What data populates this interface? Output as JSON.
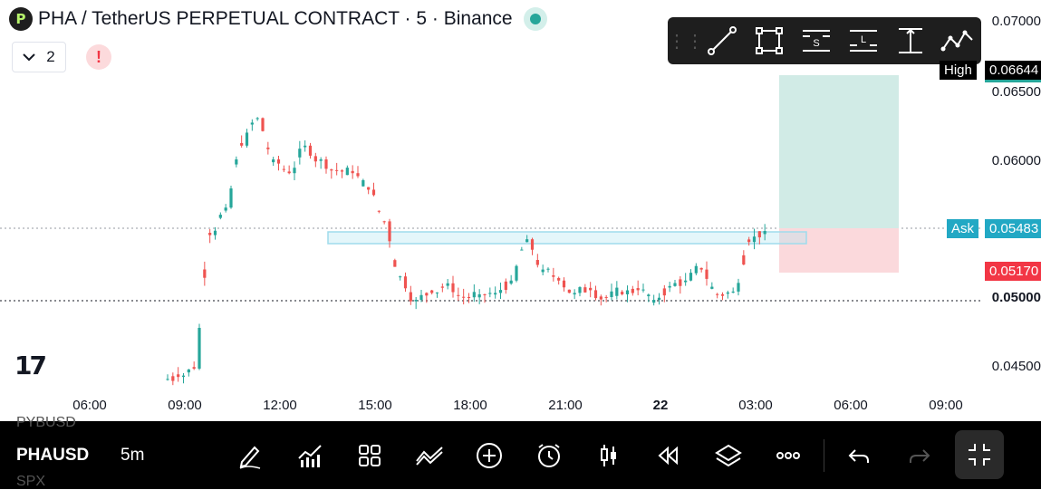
{
  "header": {
    "logo_glyph": "P",
    "title": "PHA / TetherUS PERPETUAL CONTRACT · 5 · Binance",
    "indicators_count": "2",
    "warning_glyph": "!"
  },
  "watermark": "17",
  "drawing_toolbar": {
    "tools": [
      "trend-line-icon",
      "rectangle-icon",
      "short-position-icon",
      "long-position-icon",
      "price-range-icon",
      "path-icon"
    ],
    "short_letter": "S",
    "long_letter": "L"
  },
  "price_axis": {
    "labels": [
      "0.07000",
      "0.06500",
      "0.06000",
      "0.05000",
      "0.04500"
    ],
    "high_label": "High",
    "high_value": "0.06644",
    "ask_label": "Ask",
    "ask_value": "0.05483",
    "stop_value": "0.05170",
    "current_value": "0.05000"
  },
  "time_axis": [
    "06:00",
    "09:00",
    "12:00",
    "15:00",
    "18:00",
    "21:00",
    "22",
    "03:00",
    "06:00",
    "09:00"
  ],
  "chart_data": {
    "type": "candlestick",
    "symbol": "PHAUSD",
    "timeframe": "5m",
    "ylim": [
      0.0435,
      0.071
    ],
    "x": [
      "09:00",
      "09:30",
      "10:00",
      "10:30",
      "11:00",
      "11:30",
      "12:00",
      "12:30",
      "13:00",
      "13:30",
      "14:00",
      "14:30",
      "15:00",
      "15:30",
      "16:00",
      "16:30",
      "17:00",
      "17:30",
      "18:00",
      "18:30",
      "19:00",
      "19:30",
      "20:00",
      "20:30",
      "21:00",
      "21:30",
      "22:00",
      "22:30",
      "23:00",
      "23:30",
      "00:00",
      "00:30",
      "01:00",
      "01:30",
      "02:00",
      "02:30",
      "03:00",
      "03:30"
    ],
    "close": [
      0.0442,
      0.0448,
      0.0545,
      0.0565,
      0.061,
      0.063,
      0.06,
      0.059,
      0.061,
      0.06,
      0.0592,
      0.059,
      0.0578,
      0.0555,
      0.0515,
      0.0498,
      0.0503,
      0.051,
      0.05,
      0.0502,
      0.0503,
      0.0512,
      0.0542,
      0.052,
      0.0512,
      0.0503,
      0.0505,
      0.05,
      0.0502,
      0.0505,
      0.0498,
      0.0508,
      0.0512,
      0.052,
      0.0502,
      0.0504,
      0.054,
      0.0548
    ],
    "resistance_zone": [
      0.0536,
      0.0544
    ],
    "position": {
      "entry": 0.05483,
      "target": 0.06608,
      "stop": 0.0517
    },
    "series": [
      {
        "name": "PHAUSD",
        "values": [
          0.0442,
          0.0448,
          0.0545,
          0.0565,
          0.061,
          0.063,
          0.06,
          0.059,
          0.061,
          0.06,
          0.0592,
          0.059,
          0.0578,
          0.0555,
          0.0515,
          0.0498,
          0.0503,
          0.051,
          0.05,
          0.0502,
          0.0503,
          0.0512,
          0.0542,
          0.052,
          0.0512,
          0.0503,
          0.0505,
          0.05,
          0.0502,
          0.0505,
          0.0498,
          0.0508,
          0.0512,
          0.052,
          0.0502,
          0.0504,
          0.054,
          0.0548
        ]
      }
    ]
  },
  "bottom_bar": {
    "symbol": "PHAUSD",
    "timeframe": "5m",
    "ghost_above": "PYBUSD",
    "ghost_below": "SPX",
    "buttons": [
      "draw-icon",
      "indicators-icon",
      "layouts-icon",
      "compare-icon",
      "add-icon",
      "alert-icon",
      "chart-type-icon",
      "replay-icon",
      "layers-icon",
      "more-icon",
      "undo-icon",
      "redo-icon"
    ]
  },
  "colors": {
    "up": "#26a69a",
    "down": "#ef5350",
    "profit_zone": "#d1ebe6",
    "loss_zone": "#fbd9dc",
    "ask": "#22a8c4"
  }
}
